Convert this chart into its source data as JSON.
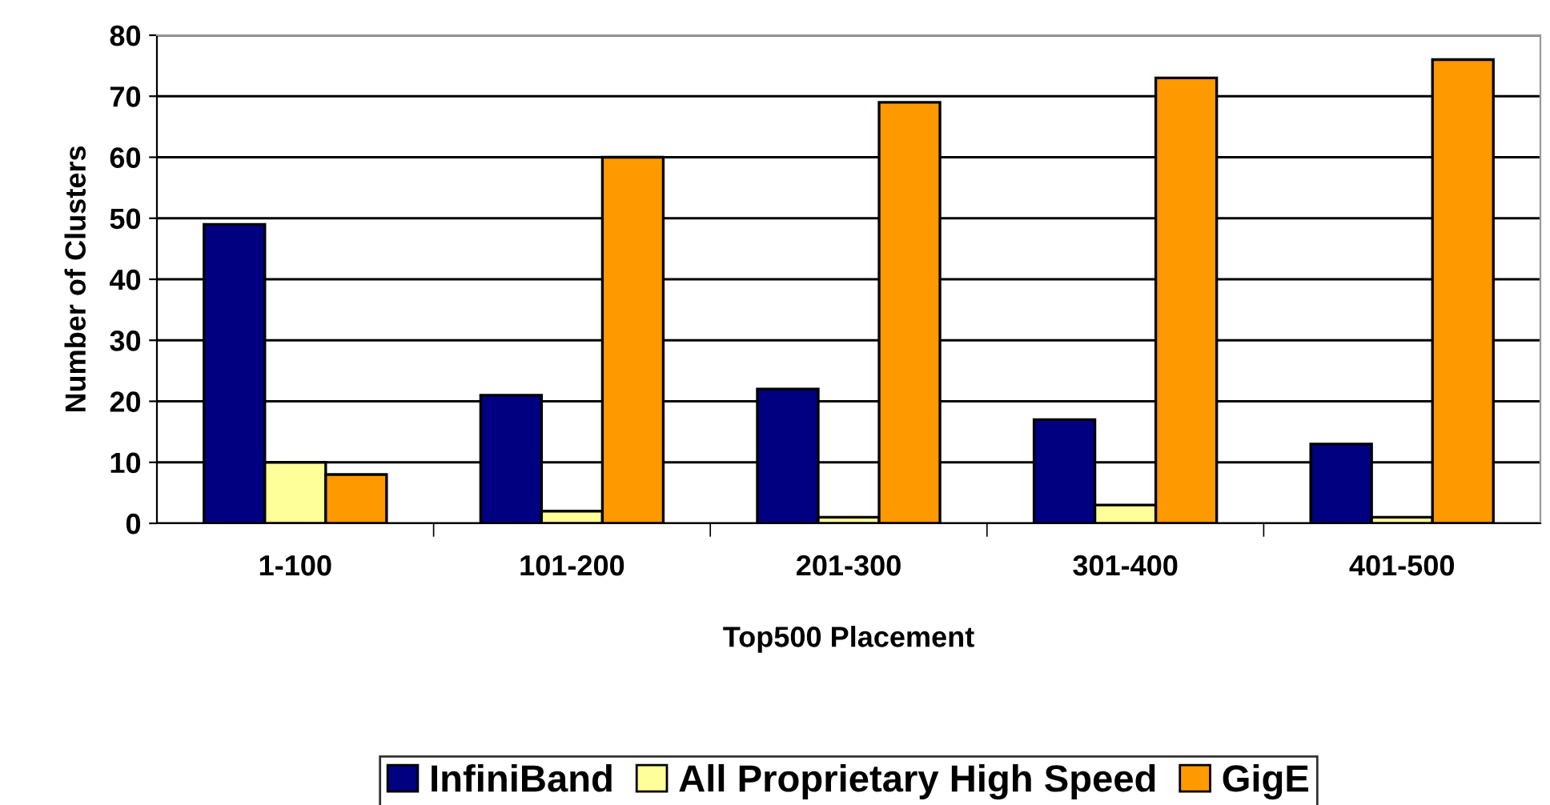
{
  "chart_data": {
    "type": "bar",
    "xlabel": "Top500 Placement",
    "ylabel": "Number of Clusters",
    "categories": [
      "1-100",
      "101-200",
      "201-300",
      "301-400",
      "401-500"
    ],
    "series": [
      {
        "name": "InfiniBand",
        "color": "#000080",
        "values": [
          49,
          21,
          22,
          17,
          13
        ]
      },
      {
        "name": "All Proprietary High Speed",
        "color": "#ffff99",
        "values": [
          10,
          2,
          1,
          3,
          1
        ]
      },
      {
        "name": "GigE",
        "color": "#ff9900",
        "values": [
          8,
          60,
          69,
          73,
          76
        ]
      }
    ],
    "ylim": [
      0,
      80
    ],
    "yticks": [
      0,
      10,
      20,
      30,
      40,
      50,
      60,
      70,
      80
    ],
    "grid": "y",
    "legend": "bottom"
  }
}
